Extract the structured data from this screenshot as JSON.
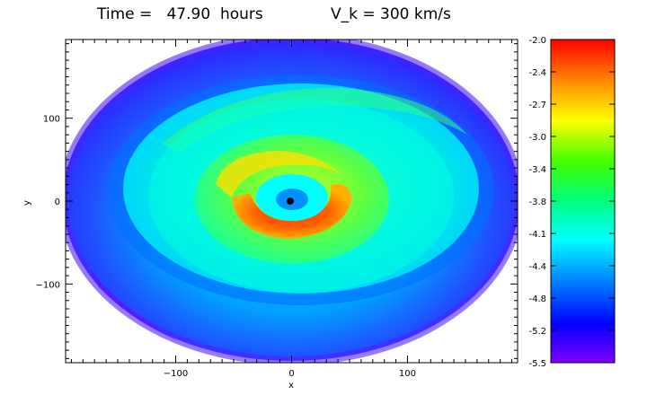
{
  "title": {
    "time_text": "Time =   47.90  hours",
    "velocity_text": "V_k = 300 km/s"
  },
  "main_plot": {
    "xlabel": "x",
    "ylabel": "y",
    "xlim": [
      -195,
      195
    ],
    "ylim": [
      -195,
      195
    ],
    "xticks": [
      -100,
      0,
      100
    ],
    "yticks": [
      -100,
      0,
      100
    ],
    "xtick_labels": [
      "−100",
      "0",
      "100"
    ],
    "ytick_labels": [
      "−100",
      "0",
      "100"
    ]
  },
  "colorbar": {
    "labels": [
      "-2.0",
      "-2.4",
      "-2.7",
      "-3.0",
      "-3.4",
      "-3.8",
      "-4.1",
      "-4.4",
      "-4.8",
      "-5.2",
      "-5.5"
    ],
    "min": -5.5,
    "max": -2.0,
    "colors": [
      "#8000ff",
      "#0000ff",
      "#0080ff",
      "#00ffff",
      "#00ff80",
      "#40ff00",
      "#ffff00",
      "#ff8000",
      "#ff0000"
    ]
  }
}
